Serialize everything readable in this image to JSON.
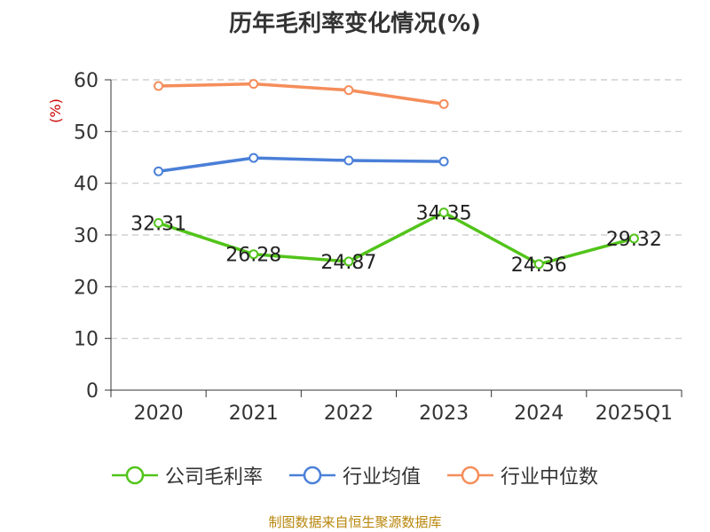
{
  "chart_data": {
    "type": "line",
    "title": "历年毛利率变化情况(%)",
    "ylabel": "(%)",
    "xlabel": "",
    "categories": [
      "2020",
      "2021",
      "2022",
      "2023",
      "2024",
      "2025Q1"
    ],
    "ylim": [
      0,
      60
    ],
    "yticks": [
      "0",
      "10",
      "20",
      "30",
      "40",
      "50",
      "60"
    ],
    "grid": true,
    "legend": "bottom",
    "series": [
      {
        "name": "公司毛利率",
        "color": "#52c41a",
        "values": [
          32.31,
          26.28,
          24.87,
          34.35,
          24.36,
          29.32
        ],
        "labels": [
          "32.31",
          "26.28",
          "24.87",
          "34.35",
          "24.36",
          "29.32"
        ]
      },
      {
        "name": "行业均值",
        "color": "#4a7fd8",
        "values": [
          42.3,
          44.9,
          44.4,
          44.2,
          null,
          null
        ]
      },
      {
        "name": "行业中位数",
        "color": "#f58d5a",
        "values": [
          58.8,
          59.2,
          58.0,
          55.3,
          null,
          null
        ]
      }
    ]
  },
  "source": "制图数据来自恒生聚源数据库"
}
